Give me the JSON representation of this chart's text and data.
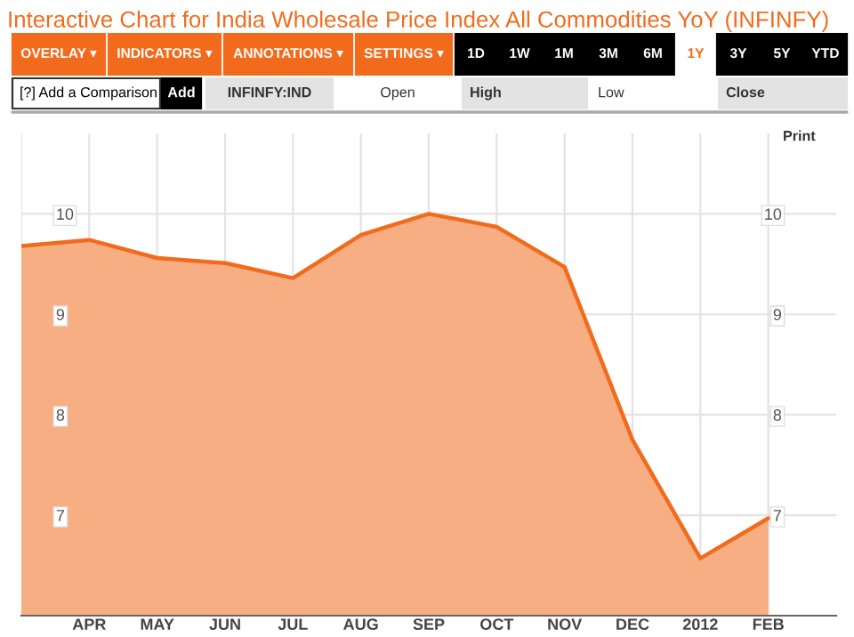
{
  "chart_data": {
    "type": "area",
    "title": "Interactive Chart for India Wholesale Price Index All Commodities YoY (INFINFY)",
    "categories": [
      null,
      "APR",
      "MAY",
      "JUN",
      "JUL",
      "AUG",
      "SEP",
      "OCT",
      "NOV",
      "DEC",
      "2012",
      "FEB"
    ],
    "series": [
      {
        "color": "#f26b1d",
        "values": [
          9.68,
          9.74,
          9.56,
          9.51,
          9.36,
          9.79,
          10.0,
          9.87,
          9.47,
          7.75,
          6.57,
          6.97
        ]
      }
    ],
    "ylim": [
      6,
      10.8
    ],
    "yticks": [
      7,
      8,
      9,
      10
    ],
    "y2lim": [
      6,
      10.8
    ],
    "y2ticks": [
      7,
      8,
      9,
      10
    ],
    "grid": true,
    "legend": false,
    "annotations": [
      "OVERLAY ▾",
      "INDICATORS ▾",
      "ANNOTATIONS ▾",
      "SETTINGS ▾",
      "1D",
      "1W",
      "1M",
      "3M",
      "6M",
      "1Y",
      "3Y",
      "5Y",
      "YTD",
      "[?] Add a Comparison",
      "Add",
      "INFINFY:IND",
      "Open",
      "High",
      "Low",
      "Close",
      "Print"
    ]
  }
}
